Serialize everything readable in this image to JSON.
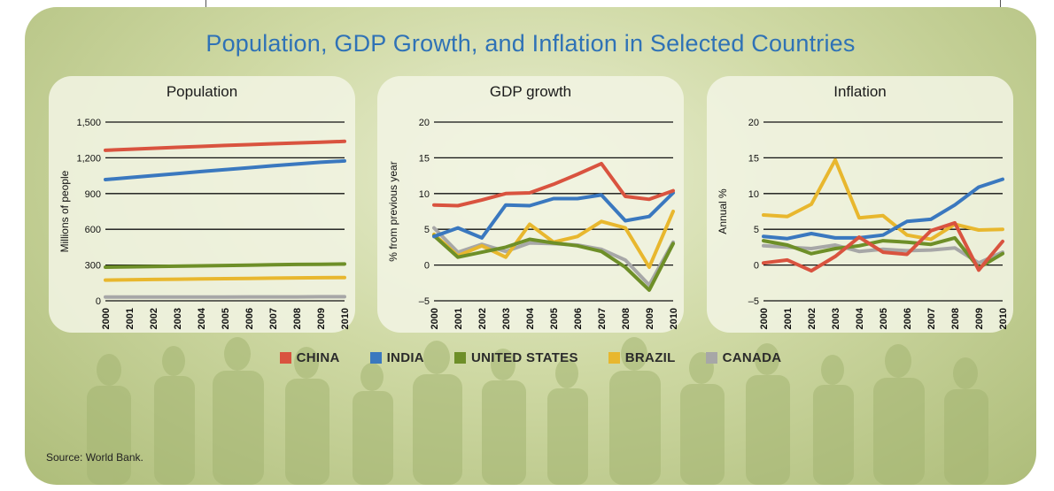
{
  "title": "Population, GDP Growth, and Inflation in Selected Countries",
  "source": "Source: World Bank.",
  "legend": [
    {
      "label": "CHINA",
      "color": "#d9533f"
    },
    {
      "label": "INDIA",
      "color": "#3a78bf"
    },
    {
      "label": "UNITED STATES",
      "color": "#6e8f28"
    },
    {
      "label": "BRAZIL",
      "color": "#e8b72e"
    },
    {
      "label": "CANADA",
      "color": "#a7a7a7"
    }
  ],
  "chart_data": [
    {
      "type": "line",
      "title": "Population",
      "ylabel": "Millions of people",
      "xlabel": "",
      "x": [
        "2000",
        "2001",
        "2002",
        "2003",
        "2004",
        "2005",
        "2006",
        "2007",
        "2008",
        "2009",
        "2010"
      ],
      "ylim": [
        0,
        1500
      ],
      "yticks": [
        "0",
        "300",
        "600",
        "900",
        "1,200",
        "1,500"
      ],
      "ytick_values": [
        0,
        300,
        600,
        900,
        1200,
        1500
      ],
      "grid": true,
      "series": [
        {
          "name": "CHINA",
          "color": "#d9533f",
          "values": [
            1263,
            1272,
            1280,
            1288,
            1296,
            1304,
            1311,
            1318,
            1325,
            1331,
            1338
          ]
        },
        {
          "name": "INDIA",
          "color": "#3a78bf",
          "values": [
            1017,
            1034,
            1051,
            1068,
            1085,
            1101,
            1117,
            1133,
            1148,
            1163,
            1174
          ]
        },
        {
          "name": "UNITED STATES",
          "color": "#6e8f28",
          "values": [
            282,
            285,
            288,
            290,
            293,
            296,
            299,
            302,
            305,
            307,
            309
          ]
        },
        {
          "name": "BRAZIL",
          "color": "#e8b72e",
          "values": [
            174,
            176,
            179,
            181,
            184,
            186,
            188,
            190,
            192,
            194,
            195
          ]
        },
        {
          "name": "CANADA",
          "color": "#a7a7a7",
          "values": [
            31,
            31,
            31,
            32,
            32,
            32,
            33,
            33,
            33,
            34,
            34
          ]
        }
      ]
    },
    {
      "type": "line",
      "title": "GDP growth",
      "ylabel": "% from previous year",
      "xlabel": "",
      "x": [
        "2000",
        "2001",
        "2002",
        "2003",
        "2004",
        "2005",
        "2006",
        "2007",
        "2008",
        "2009",
        "2010"
      ],
      "ylim": [
        -5,
        20
      ],
      "yticks": [
        "–5",
        "0",
        "5",
        "10",
        "15",
        "20"
      ],
      "ytick_values": [
        -5,
        0,
        5,
        10,
        15,
        20
      ],
      "grid": true,
      "series": [
        {
          "name": "CHINA",
          "color": "#d9533f",
          "values": [
            8.4,
            8.3,
            9.1,
            10.0,
            10.1,
            11.3,
            12.7,
            14.2,
            9.6,
            9.2,
            10.4
          ]
        },
        {
          "name": "INDIA",
          "color": "#3a78bf",
          "values": [
            4.0,
            5.2,
            3.8,
            8.4,
            8.3,
            9.3,
            9.3,
            9.8,
            6.2,
            6.8,
            10.1
          ]
        },
        {
          "name": "UNITED STATES",
          "color": "#6e8f28",
          "values": [
            4.1,
            1.1,
            1.8,
            2.5,
            3.6,
            3.1,
            2.7,
            1.9,
            -0.3,
            -3.5,
            3.0
          ]
        },
        {
          "name": "BRAZIL",
          "color": "#e8b72e",
          "values": [
            4.3,
            1.3,
            2.7,
            1.1,
            5.7,
            3.2,
            4.0,
            6.1,
            5.2,
            -0.3,
            7.5
          ]
        },
        {
          "name": "CANADA",
          "color": "#a7a7a7",
          "values": [
            5.2,
            1.8,
            2.9,
            1.9,
            3.1,
            3.0,
            2.8,
            2.2,
            0.7,
            -2.8,
            3.2
          ]
        }
      ]
    },
    {
      "type": "line",
      "title": "Inflation",
      "ylabel": "Annual %",
      "xlabel": "",
      "x": [
        "2000",
        "2001",
        "2002",
        "2003",
        "2004",
        "2005",
        "2006",
        "2007",
        "2008",
        "2009",
        "2010"
      ],
      "ylim": [
        -5,
        20
      ],
      "yticks": [
        "–5",
        "0",
        "5",
        "10",
        "15",
        "20"
      ],
      "ytick_values": [
        -5,
        0,
        5,
        10,
        15,
        20
      ],
      "grid": true,
      "series": [
        {
          "name": "CHINA",
          "color": "#d9533f",
          "values": [
            0.3,
            0.7,
            -0.8,
            1.2,
            3.9,
            1.8,
            1.5,
            4.8,
            5.9,
            -0.7,
            3.3
          ]
        },
        {
          "name": "INDIA",
          "color": "#3a78bf",
          "values": [
            4.0,
            3.7,
            4.4,
            3.8,
            3.8,
            4.2,
            6.1,
            6.4,
            8.4,
            10.9,
            12.0
          ]
        },
        {
          "name": "UNITED STATES",
          "color": "#6e8f28",
          "values": [
            3.4,
            2.8,
            1.6,
            2.3,
            2.7,
            3.4,
            3.2,
            2.9,
            3.8,
            -0.4,
            1.6
          ]
        },
        {
          "name": "BRAZIL",
          "color": "#e8b72e",
          "values": [
            7.0,
            6.8,
            8.5,
            14.7,
            6.6,
            6.9,
            4.2,
            3.6,
            5.7,
            4.9,
            5.0
          ]
        },
        {
          "name": "CANADA",
          "color": "#a7a7a7",
          "values": [
            2.7,
            2.5,
            2.3,
            2.8,
            1.9,
            2.2,
            2.0,
            2.1,
            2.4,
            0.3,
            1.8
          ]
        }
      ]
    }
  ]
}
